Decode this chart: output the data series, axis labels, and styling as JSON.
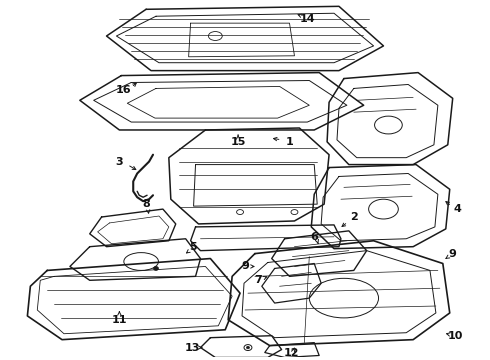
{
  "background_color": "#ffffff",
  "line_color": "#1a1a1a",
  "label_color": "#111111",
  "figsize": [
    4.9,
    3.6
  ],
  "dpi": 100,
  "font_size": 8.0,
  "font_weight": "bold"
}
